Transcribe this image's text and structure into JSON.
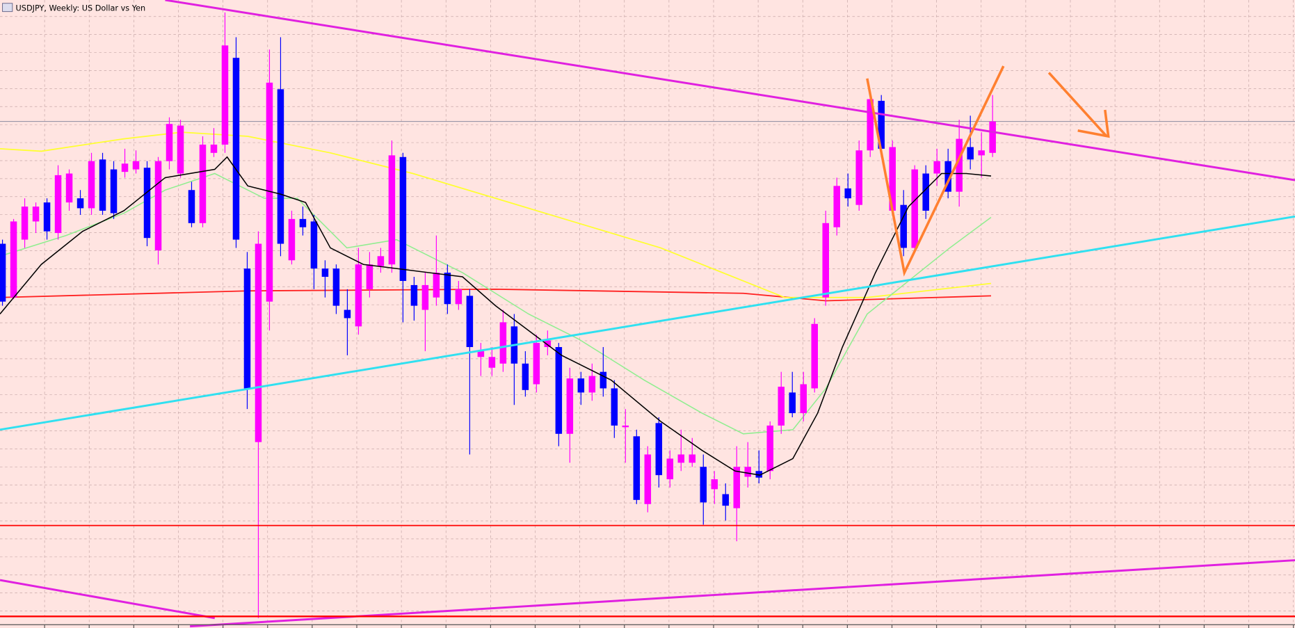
{
  "chart_data": {
    "type": "candlestick",
    "title": "USDJPY, Weekly:  US Dollar vs Yen",
    "up_color": "#ff00ff",
    "down_color": "#0000ff",
    "ylim": [
      0,
      760
    ],
    "open": [
      465,
      400,
      470,
      492,
      515,
      478,
      515,
      520,
      508,
      567,
      555,
      552,
      555,
      557,
      457,
      565,
      550,
      530,
      490,
      575,
      585,
      690,
      435,
      225,
      395,
      652,
      445,
      495,
      492,
      435,
      435,
      385,
      365,
      410,
      438,
      440,
      570,
      415,
      385,
      400,
      430,
      392,
      402,
      328,
      315,
      320,
      365,
      320,
      295,
      340,
      340,
      235,
      302,
      285,
      310,
      290,
      243,
      232,
      150,
      248,
      180,
      200,
      200,
      195,
      168,
      162,
      145,
      183,
      190,
      190,
      245,
      285,
      260,
      290,
      400,
      485,
      532,
      512,
      578,
      638,
      505,
      512,
      460,
      550,
      550,
      565,
      528,
      582,
      572,
      575
    ],
    "high": [
      470,
      495,
      520,
      515,
      520,
      560,
      555,
      530,
      575,
      575,
      565,
      580,
      578,
      565,
      570,
      618,
      615,
      540,
      595,
      605,
      745,
      715,
      455,
      480,
      700,
      715,
      505,
      510,
      500,
      445,
      440,
      410,
      460,
      455,
      460,
      590,
      575,
      425,
      430,
      475,
      440,
      420,
      410,
      345,
      340,
      385,
      380,
      335,
      355,
      360,
      345,
      315,
      310,
      320,
      340,
      300,
      265,
      240,
      220,
      255,
      215,
      240,
      230,
      210,
      190,
      175,
      220,
      225,
      215,
      250,
      310,
      310,
      310,
      375,
      505,
      545,
      550,
      590,
      645,
      645,
      590,
      530,
      560,
      560,
      580,
      580,
      615,
      620,
      600,
      645
    ],
    "low": [
      390,
      398,
      460,
      478,
      470,
      470,
      505,
      500,
      500,
      500,
      495,
      545,
      550,
      462,
      440,
      555,
      545,
      485,
      485,
      570,
      575,
      460,
      265,
      12,
      360,
      450,
      440,
      475,
      410,
      400,
      380,
      330,
      355,
      400,
      430,
      430,
      370,
      372,
      335,
      390,
      380,
      385,
      210,
      305,
      305,
      310,
      270,
      280,
      285,
      330,
      220,
      200,
      270,
      275,
      280,
      230,
      200,
      150,
      140,
      170,
      170,
      190,
      195,
      125,
      150,
      130,
      105,
      170,
      175,
      180,
      235,
      255,
      250,
      285,
      390,
      475,
      510,
      505,
      570,
      570,
      500,
      450,
      455,
      495,
      535,
      520,
      510,
      555,
      545,
      570
    ],
    "close": [
      395,
      492,
      510,
      510,
      480,
      548,
      550,
      508,
      565,
      505,
      502,
      562,
      565,
      472,
      565,
      610,
      608,
      490,
      585,
      585,
      705,
      470,
      290,
      465,
      660,
      465,
      495,
      485,
      435,
      425,
      390,
      375,
      440,
      440,
      450,
      572,
      420,
      390,
      415,
      430,
      392,
      410,
      340,
      335,
      328,
      370,
      320,
      288,
      345,
      348,
      235,
      302,
      285,
      305,
      290,
      245,
      245,
      155,
      210,
      185,
      205,
      210,
      210,
      152,
      180,
      148,
      195,
      195,
      182,
      245,
      292,
      260,
      295,
      368,
      490,
      535,
      520,
      578,
      640,
      580,
      582,
      460,
      555,
      505,
      565,
      528,
      592,
      567,
      578,
      613
    ]
  }
}
